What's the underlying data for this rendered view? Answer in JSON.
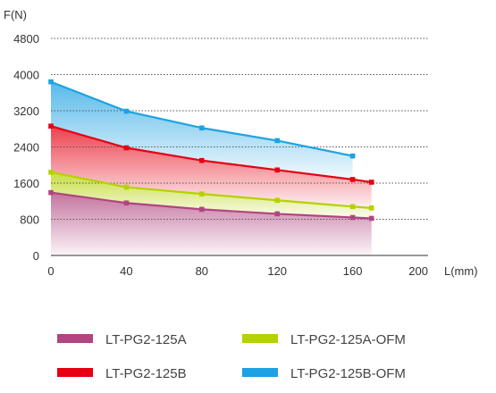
{
  "chart_data": {
    "type": "area",
    "title": "",
    "ylabel": "F(N)",
    "xlabel": "L(mm)",
    "x_ticks": [
      0,
      40,
      80,
      120,
      160,
      200
    ],
    "y_ticks": [
      0,
      800,
      1600,
      2400,
      3200,
      4000,
      4800
    ],
    "xlim": [
      0,
      200
    ],
    "ylim": [
      0,
      4800
    ],
    "grid": "horizontal dotted",
    "legend_position": "bottom",
    "series": [
      {
        "name": "LT-PG2-125A",
        "color": "#b0457f",
        "x": [
          0,
          40,
          80,
          120,
          160,
          170
        ],
        "values": [
          1390,
          1160,
          1020,
          920,
          840,
          820
        ]
      },
      {
        "name": "LT-PG2-125A-OFM",
        "color": "#b5d100",
        "x": [
          0,
          40,
          80,
          120,
          160,
          170
        ],
        "values": [
          1840,
          1510,
          1360,
          1220,
          1080,
          1050
        ]
      },
      {
        "name": "LT-PG2-125B",
        "color": "#e60012",
        "x": [
          0,
          40,
          80,
          120,
          160,
          170
        ],
        "values": [
          2860,
          2380,
          2100,
          1890,
          1680,
          1620
        ]
      },
      {
        "name": "LT-PG2-125B-OFM",
        "color": "#1fa2e3",
        "x": [
          0,
          40,
          80,
          120,
          160
        ],
        "values": [
          3840,
          3190,
          2820,
          2540,
          2200
        ]
      }
    ]
  }
}
